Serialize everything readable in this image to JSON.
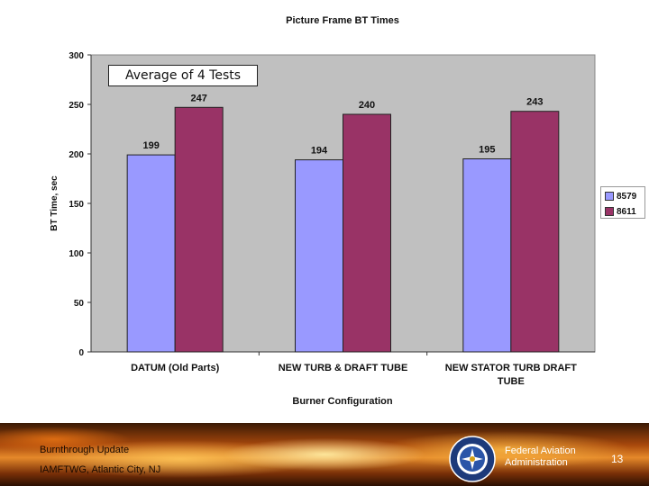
{
  "chart_data": {
    "type": "bar",
    "title": "Picture Frame BT Times",
    "xlabel": "Burner Configuration",
    "ylabel": "BT Time, sec",
    "ylim": [
      0,
      300
    ],
    "yticks": [
      0,
      50,
      100,
      150,
      200,
      250,
      300
    ],
    "categories": [
      "DATUM (Old Parts)",
      "NEW TURB & DRAFT TUBE",
      "NEW STATOR TURB DRAFT TUBE"
    ],
    "category_lines": [
      [
        "DATUM (Old Parts)"
      ],
      [
        "NEW TURB & DRAFT TUBE"
      ],
      [
        "NEW STATOR TURB DRAFT",
        "TUBE"
      ]
    ],
    "series": [
      {
        "name": "8579",
        "values": [
          199,
          194,
          195
        ],
        "color": "#9999ff"
      },
      {
        "name": "8611",
        "values": [
          247,
          240,
          243
        ],
        "color": "#993366"
      }
    ],
    "annotation": "Average of 4 Tests",
    "legend_position": "right",
    "grid": false,
    "plot_background": "#c0c0c0"
  },
  "footer": {
    "title": "Burnthrough Update",
    "subtitle": "IAMFTWG, Atlantic City, NJ",
    "agency_line1": "Federal Aviation",
    "agency_line2": "Administration",
    "page_number": "13"
  }
}
